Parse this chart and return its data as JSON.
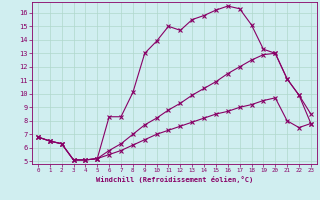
{
  "xlabel": "Windchill (Refroidissement éolien,°C)",
  "bg_color": "#d0eef0",
  "grid_color": "#b0d8cc",
  "line_color": "#880066",
  "spine_color": "#880066",
  "xlim": [
    -0.5,
    23.5
  ],
  "ylim": [
    4.8,
    16.8
  ],
  "xticks": [
    0,
    1,
    2,
    3,
    4,
    5,
    6,
    7,
    8,
    9,
    10,
    11,
    12,
    13,
    14,
    15,
    16,
    17,
    18,
    19,
    20,
    21,
    22,
    23
  ],
  "yticks": [
    5,
    6,
    7,
    8,
    9,
    10,
    11,
    12,
    13,
    14,
    15,
    16
  ],
  "line1_x": [
    0,
    1,
    2,
    3,
    4,
    5,
    6,
    7,
    8,
    9,
    10,
    11,
    12,
    13,
    14,
    15,
    16,
    17,
    18,
    19,
    20,
    21,
    22,
    23
  ],
  "line1_y": [
    6.8,
    6.5,
    6.3,
    5.1,
    5.1,
    5.2,
    8.3,
    8.3,
    10.1,
    13.0,
    13.9,
    15.0,
    14.7,
    15.5,
    15.8,
    16.2,
    16.5,
    16.3,
    15.1,
    13.3,
    13.0,
    11.1,
    9.9,
    8.5
  ],
  "line2_x": [
    0,
    1,
    2,
    3,
    4,
    5,
    6,
    7,
    8,
    9,
    10,
    11,
    12,
    13,
    14,
    15,
    16,
    17,
    18,
    19,
    20,
    21,
    22,
    23
  ],
  "line2_y": [
    6.8,
    6.5,
    6.3,
    5.1,
    5.1,
    5.2,
    5.8,
    6.3,
    7.0,
    7.7,
    8.2,
    8.8,
    9.3,
    9.9,
    10.4,
    10.9,
    11.5,
    12.0,
    12.5,
    12.9,
    13.0,
    11.1,
    9.9,
    7.8
  ],
  "line3_x": [
    0,
    1,
    2,
    3,
    4,
    5,
    6,
    7,
    8,
    9,
    10,
    11,
    12,
    13,
    14,
    15,
    16,
    17,
    18,
    19,
    20,
    21,
    22,
    23
  ],
  "line3_y": [
    6.8,
    6.5,
    6.3,
    5.1,
    5.1,
    5.2,
    5.5,
    5.8,
    6.2,
    6.6,
    7.0,
    7.3,
    7.6,
    7.9,
    8.2,
    8.5,
    8.7,
    9.0,
    9.2,
    9.5,
    9.7,
    8.0,
    7.5,
    7.8
  ]
}
